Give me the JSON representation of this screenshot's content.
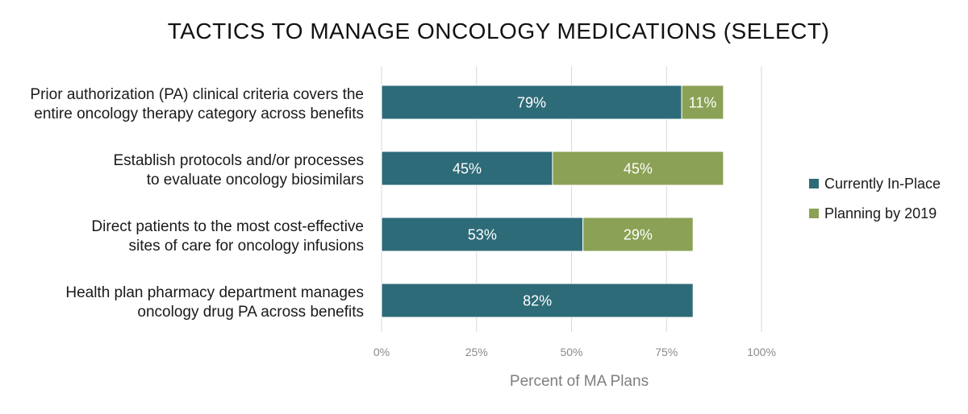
{
  "chart_data": {
    "type": "bar",
    "orientation": "horizontal",
    "stacked": true,
    "title": "TACTICS TO MANAGE ONCOLOGY MEDICATIONS (SELECT)",
    "xlabel": "Percent of MA Plans",
    "ylabel": "",
    "xlim": [
      0,
      100
    ],
    "ticks": [
      "0%",
      "25%",
      "50%",
      "75%",
      "100%"
    ],
    "tick_values": [
      0,
      25,
      50,
      75,
      100
    ],
    "grid": true,
    "legend_position": "right",
    "categories": [
      [
        "Prior authorization (PA) clinical criteria covers the",
        "entire oncology therapy category across benefits"
      ],
      [
        "Establish protocols and/or processes",
        "to evaluate oncology biosimilars"
      ],
      [
        "Direct patients to the most cost-effective",
        "sites of care for oncology infusions"
      ],
      [
        "Health plan pharmacy department manages",
        "oncology drug PA across benefits"
      ]
    ],
    "series": [
      {
        "name": "Currently In-Place",
        "color": "#2e6b78",
        "values": [
          79,
          45,
          53,
          82
        ],
        "labels": [
          "79%",
          "45%",
          "53%",
          "82%"
        ]
      },
      {
        "name": "Planning by 2019",
        "color": "#8ba155",
        "values": [
          11,
          45,
          29,
          null
        ],
        "labels": [
          "11%",
          "45%",
          "29%",
          null
        ]
      }
    ]
  }
}
